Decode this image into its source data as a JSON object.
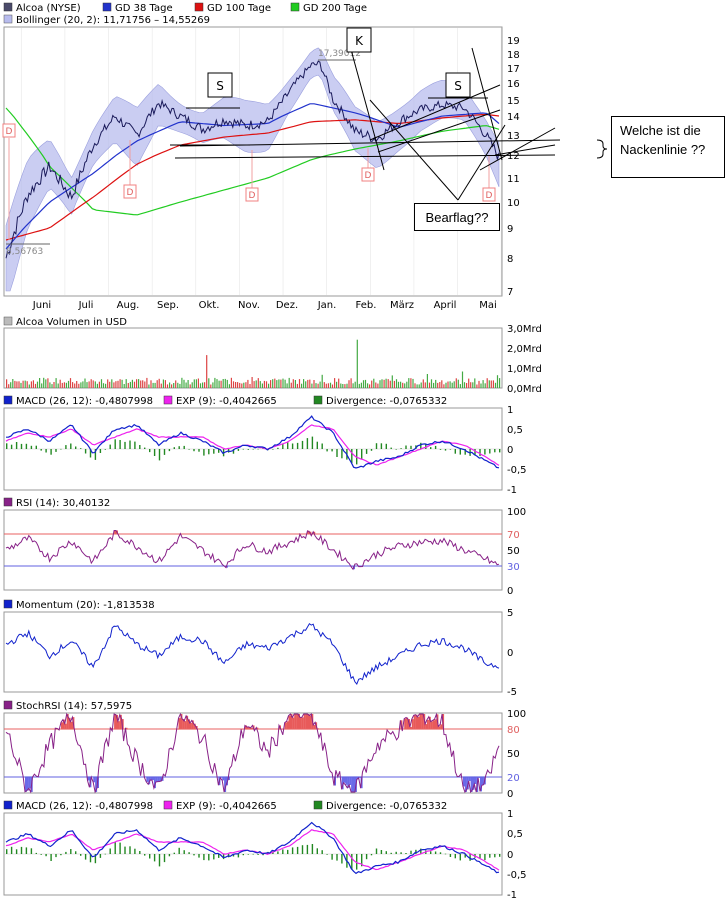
{
  "colors": {
    "price": "#1a1a8c",
    "gd38": "#2233cc",
    "gd100": "#dd1111",
    "gd200": "#22cc22",
    "bollinger_fill": "#b8bcee",
    "volume_up": "#44aa44",
    "volume_down": "#dd4444",
    "macd": "#1122cc",
    "exp": "#ee22ee",
    "divergence": "#228822",
    "rsi": "#882288",
    "momentum": "#1122cc",
    "stochrsi": "#882288",
    "overbought_fill": "#e85a5a",
    "oversold_fill": "#6a6ae8",
    "upper_line": "#e86060",
    "lower_line": "#6060e0",
    "grid": "#e6e6e6"
  },
  "main": {
    "legend": [
      {
        "label": "Alcoa (NYSE)",
        "color": "#4a4a6a"
      },
      {
        "label": "GD 38 Tage",
        "color": "#2233cc"
      },
      {
        "label": "GD 100 Tage",
        "color": "#dd1111"
      },
      {
        "label": "GD 200 Tage",
        "color": "#22cc22"
      }
    ],
    "bollinger_label": "Bollinger (20, 2): 11,71756 – 14,55269",
    "months": [
      "Juni",
      "Juli",
      "Aug.",
      "Sep.",
      "Okt.",
      "Nov.",
      "Dez.",
      "Jan.",
      "Feb.",
      "März",
      "April",
      "Mai"
    ],
    "price_ticks": [
      "19",
      "18",
      "17",
      "16",
      "15",
      "14",
      "13",
      "12",
      "11",
      "10",
      "9",
      "8",
      "7"
    ],
    "high_annotation": "17,39012",
    "low_annotation": "8,56763",
    "dividend_marker": "D",
    "labels": {
      "s_left": "S",
      "k": "K",
      "s_right": "S"
    },
    "bearflag": "Bearflag??",
    "question": "Welche ist die Nackenlinie ??"
  },
  "volume": {
    "label": "Alcoa Volumen in USD",
    "ticks": [
      "3,0Mrd",
      "2,0Mrd",
      "1,0Mrd",
      "0,0Mrd"
    ]
  },
  "macd1": {
    "items": [
      {
        "label": "MACD (26, 12): -0,4807998",
        "color": "#1122cc"
      },
      {
        "label": "EXP (9): -0,4042665",
        "color": "#ee22ee"
      },
      {
        "label": "Divergence: -0,0765332",
        "color": "#228822"
      }
    ],
    "ticks": [
      "1",
      "0,5",
      "0",
      "-0,5",
      "-1"
    ]
  },
  "rsi": {
    "label": "RSI (14): 30,40132",
    "color": "#882288",
    "ticks": [
      "100",
      "70",
      "50",
      "30",
      "0"
    ]
  },
  "momentum": {
    "label": "Momentum (20): -1,813538",
    "color": "#1122cc",
    "ticks": [
      "5",
      "0",
      "-5"
    ]
  },
  "stochrsi": {
    "label": "StochRSI (14): 57,5975",
    "color": "#882288",
    "ticks": [
      "100",
      "80",
      "50",
      "20",
      "0"
    ]
  },
  "macd2": {
    "items": [
      {
        "label": "MACD (26, 12): -0,4807998",
        "color": "#1122cc"
      },
      {
        "label": "EXP (9): -0,4042665",
        "color": "#ee22ee"
      },
      {
        "label": "Divergence: -0,0765332",
        "color": "#228822"
      }
    ],
    "ticks": [
      "1",
      "0,5",
      "0",
      "-0,5",
      "-1"
    ]
  },
  "chart_data": [
    {
      "type": "line",
      "title": "Alcoa (NYSE)",
      "x_labels": [
        "Juni",
        "Juli",
        "Aug.",
        "Sep.",
        "Okt.",
        "Nov.",
        "Dez.",
        "Jan.",
        "Feb.",
        "März",
        "April",
        "Mai"
      ],
      "ylim": [
        7,
        19
      ],
      "series": [
        {
          "name": "Alcoa (NYSE)",
          "x": [
            0,
            0.5,
            1,
            1.5,
            2,
            2.5,
            3,
            3.5,
            4,
            4.5,
            5,
            5.5,
            6,
            6.5,
            7,
            7.2,
            7.5,
            8,
            8.5,
            9,
            9.5,
            10,
            10.5,
            11,
            11.3
          ],
          "values": [
            8.0,
            10.3,
            11.5,
            10.2,
            12.5,
            14.0,
            13.0,
            14.8,
            14.0,
            13.3,
            13.8,
            13.5,
            13.7,
            15.5,
            17.2,
            17.3,
            15.0,
            13.2,
            12.8,
            13.7,
            14.4,
            14.7,
            14.5,
            13.0,
            11.9
          ]
        },
        {
          "name": "GD 38 Tage",
          "x": [
            0,
            1,
            2,
            3,
            4,
            5,
            6,
            7,
            8,
            9,
            10,
            11,
            11.3
          ],
          "values": [
            8.3,
            10.0,
            11.2,
            12.7,
            13.7,
            13.5,
            13.6,
            14.8,
            14.2,
            13.4,
            14.0,
            14.2,
            13.6
          ]
        },
        {
          "name": "GD 100 Tage",
          "x": [
            0,
            1,
            2,
            3,
            4,
            5,
            6,
            7,
            8,
            9,
            10,
            11,
            11.3
          ],
          "values": [
            8.6,
            9.0,
            10.2,
            11.6,
            12.5,
            12.9,
            13.1,
            13.7,
            13.8,
            13.6,
            13.9,
            14.1,
            14.0
          ]
        },
        {
          "name": "GD 200 Tage",
          "x": [
            0,
            1,
            2,
            3,
            4,
            5,
            6,
            7,
            8,
            9,
            10,
            11,
            11.3
          ],
          "values": [
            14.5,
            11.5,
            9.7,
            9.5,
            10.0,
            10.5,
            11.0,
            11.8,
            12.3,
            12.7,
            13.2,
            13.5,
            13.3
          ]
        }
      ],
      "annotations": [
        "17,39012",
        "8,56763"
      ],
      "bollinger": "Bollinger (20, 2): 11,71756 – 14,55269"
    },
    {
      "type": "bar",
      "title": "Alcoa Volumen in USD",
      "ylim": [
        0,
        3.0
      ],
      "unit": "Mrd",
      "peak": 2.5
    },
    {
      "type": "line",
      "title": "MACD (26, 12): -0,4807998",
      "ylim": [
        -1,
        1
      ],
      "series": [
        {
          "name": "MACD (26, 12)",
          "x": [
            0,
            0.5,
            1,
            1.5,
            2,
            2.5,
            3,
            3.5,
            4,
            4.5,
            5,
            5.5,
            6,
            6.5,
            7,
            7.5,
            8,
            8.5,
            9,
            9.5,
            10,
            10.5,
            11,
            11.3
          ],
          "values": [
            0.3,
            0.5,
            0.2,
            0.6,
            -0.1,
            0.5,
            0.6,
            0.1,
            0.4,
            0.2,
            -0.1,
            0.1,
            0.0,
            0.3,
            0.8,
            0.4,
            -0.5,
            -0.3,
            -0.2,
            0.1,
            0.2,
            0.0,
            -0.3,
            -0.48
          ]
        },
        {
          "name": "EXP (9)",
          "x": [
            0,
            0.5,
            1,
            1.5,
            2,
            2.5,
            3,
            3.5,
            4,
            4.5,
            5,
            5.5,
            6,
            6.5,
            7,
            7.5,
            8,
            8.5,
            9,
            9.5,
            10,
            10.5,
            11,
            11.3
          ],
          "values": [
            0.2,
            0.4,
            0.3,
            0.5,
            0.1,
            0.3,
            0.5,
            0.3,
            0.3,
            0.3,
            0.0,
            0.1,
            0.0,
            0.2,
            0.6,
            0.5,
            -0.2,
            -0.4,
            -0.2,
            0.0,
            0.2,
            0.1,
            -0.2,
            -0.4
          ]
        }
      ],
      "divergence_last": -0.0765332
    },
    {
      "type": "line",
      "title": "RSI (14): 30,40132",
      "ylim": [
        0,
        100
      ],
      "levels": [
        70,
        30
      ],
      "series": [
        {
          "name": "RSI (14)",
          "x": [
            0,
            0.5,
            1,
            1.5,
            2,
            2.5,
            3,
            3.5,
            4,
            4.5,
            5,
            5.5,
            6,
            6.5,
            7,
            7.5,
            8,
            8.5,
            9,
            9.5,
            10,
            10.5,
            11,
            11.3
          ],
          "values": [
            50,
            65,
            40,
            62,
            35,
            72,
            55,
            35,
            68,
            50,
            30,
            58,
            48,
            60,
            73,
            50,
            28,
            45,
            55,
            60,
            62,
            50,
            38,
            30
          ]
        }
      ]
    },
    {
      "type": "line",
      "title": "Momentum (20): -1,813538",
      "ylim": [
        -5,
        5
      ],
      "series": [
        {
          "name": "Momentum (20)",
          "x": [
            0,
            0.5,
            1,
            1.5,
            2,
            2.5,
            3,
            3.5,
            4,
            4.5,
            5,
            5.5,
            6,
            6.5,
            7,
            7.5,
            8,
            8.5,
            9,
            9.5,
            10,
            10.5,
            11,
            11.3
          ],
          "values": [
            1.0,
            2.5,
            -0.5,
            1.5,
            -2.0,
            3.5,
            1.0,
            -0.5,
            2.0,
            1.5,
            -1.5,
            1.0,
            0.5,
            2.0,
            3.5,
            1.0,
            -4.0,
            -2.0,
            -0.5,
            1.0,
            1.5,
            0.5,
            -1.5,
            -1.8
          ]
        }
      ]
    },
    {
      "type": "line",
      "title": "StochRSI (14): 57,5975",
      "ylim": [
        0,
        100
      ],
      "levels": [
        80,
        20
      ],
      "series": [
        {
          "name": "StochRSI (14)",
          "x": [
            0,
            0.5,
            1,
            1.5,
            2,
            2.5,
            3,
            3.5,
            4,
            4.5,
            5,
            5.5,
            6,
            6.5,
            7,
            7.5,
            8,
            8.5,
            9,
            9.5,
            10,
            10.5,
            11,
            11.3
          ],
          "values": [
            80,
            0,
            60,
            100,
            0,
            100,
            40,
            0,
            100,
            70,
            0,
            90,
            50,
            100,
            100,
            20,
            0,
            60,
            80,
            100,
            90,
            0,
            10,
            58
          ]
        }
      ]
    },
    {
      "type": "line",
      "title": "MACD (26, 12): -0,4807998",
      "ylim": [
        -1,
        1
      ],
      "series": [
        {
          "name": "MACD (26, 12)",
          "x": [
            0,
            0.5,
            1,
            1.5,
            2,
            2.5,
            3,
            3.5,
            4,
            4.5,
            5,
            5.5,
            6,
            6.5,
            7,
            7.5,
            8,
            8.5,
            9,
            9.5,
            10,
            10.5,
            11,
            11.3
          ],
          "values": [
            0.3,
            0.5,
            0.2,
            0.6,
            -0.1,
            0.5,
            0.6,
            0.1,
            0.4,
            0.2,
            -0.1,
            0.1,
            0.0,
            0.3,
            0.8,
            0.4,
            -0.5,
            -0.3,
            -0.2,
            0.1,
            0.2,
            0.0,
            -0.3,
            -0.48
          ]
        },
        {
          "name": "EXP (9)",
          "x": [
            0,
            0.5,
            1,
            1.5,
            2,
            2.5,
            3,
            3.5,
            4,
            4.5,
            5,
            5.5,
            6,
            6.5,
            7,
            7.5,
            8,
            8.5,
            9,
            9.5,
            10,
            10.5,
            11,
            11.3
          ],
          "values": [
            0.2,
            0.4,
            0.3,
            0.5,
            0.1,
            0.3,
            0.5,
            0.3,
            0.3,
            0.3,
            0.0,
            0.1,
            0.0,
            0.2,
            0.6,
            0.5,
            -0.2,
            -0.4,
            -0.2,
            0.0,
            0.2,
            0.1,
            -0.2,
            -0.4
          ]
        }
      ],
      "divergence_last": -0.0765332
    }
  ]
}
